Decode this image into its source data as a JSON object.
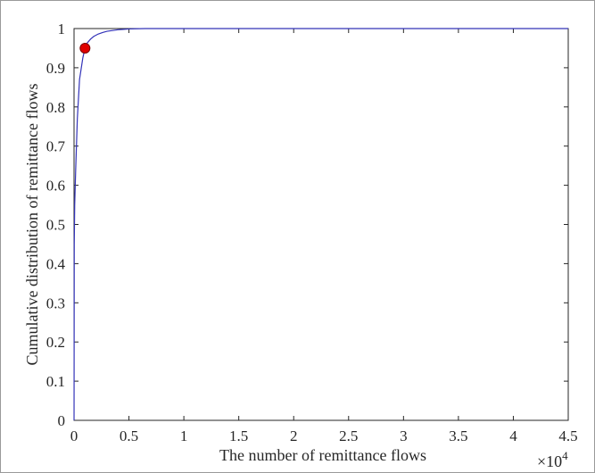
{
  "chart_data": {
    "type": "line",
    "title": "",
    "xlabel": "The number of remittance flows",
    "ylabel": "Cumulative distribution of remittance flows",
    "x_exponent_label": "×10",
    "x_exponent_power": "4",
    "xlim": [
      0,
      45000
    ],
    "ylim": [
      0,
      1
    ],
    "xticks": [
      0,
      5000,
      10000,
      15000,
      20000,
      25000,
      30000,
      35000,
      40000,
      45000
    ],
    "xtick_labels": [
      "0",
      "0.5",
      "1",
      "1.5",
      "2",
      "2.5",
      "3",
      "3.5",
      "4",
      "4.5"
    ],
    "yticks": [
      0,
      0.1,
      0.2,
      0.3,
      0.4,
      0.5,
      0.6,
      0.7,
      0.8,
      0.9,
      1
    ],
    "ytick_labels": [
      "0",
      "0.1",
      "0.2",
      "0.3",
      "0.4",
      "0.5",
      "0.6",
      "0.7",
      "0.8",
      "0.9",
      "1"
    ],
    "grid": false,
    "series": [
      {
        "color": "#3333b8",
        "x": [
          1,
          20,
          60,
          150,
          300,
          500,
          800,
          1000,
          1200,
          1500,
          1800,
          2200,
          2600,
          3000,
          3500,
          4000,
          4500,
          5000,
          5500,
          6000,
          6500,
          45000
        ],
        "y": [
          0.0,
          0.45,
          0.55,
          0.64,
          0.77,
          0.87,
          0.925,
          0.95,
          0.963,
          0.973,
          0.98,
          0.986,
          0.99,
          0.993,
          0.995,
          0.997,
          0.998,
          0.999,
          0.9995,
          0.9998,
          1.0,
          1.0
        ]
      }
    ],
    "marker": {
      "x": 1000,
      "y": 0.95,
      "color": "#e00000",
      "edge_color": "#7a0000"
    },
    "axis_color": "#262626"
  }
}
